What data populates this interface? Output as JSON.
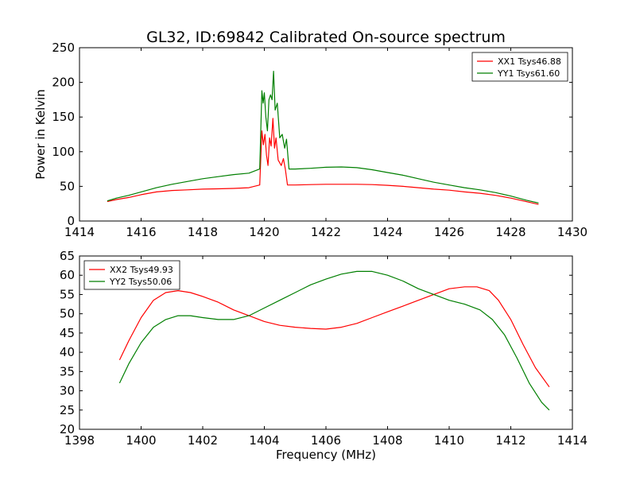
{
  "title": "GL32, ID:69842 Calibrated On-source spectrum",
  "colors": {
    "red": "#ff0000",
    "green": "#007f00"
  },
  "chart_data": [
    {
      "type": "line",
      "title": "GL32, ID:69842 Calibrated On-source spectrum",
      "xlabel": "",
      "ylabel": "Power in Kelvin",
      "xlim": [
        1414,
        1430
      ],
      "ylim": [
        0,
        250
      ],
      "xticks": [
        "1414",
        "1416",
        "1418",
        "1420",
        "1422",
        "1424",
        "1426",
        "1428",
        "1430"
      ],
      "yticks": [
        "0",
        "50",
        "100",
        "150",
        "200",
        "250"
      ],
      "legend_position": "top-right",
      "series": [
        {
          "name": "XX1 Tsys46.88",
          "color": "#ff0000",
          "x": [
            1414.9,
            1415.2,
            1415.6,
            1416.0,
            1416.5,
            1417.0,
            1417.5,
            1418.0,
            1418.5,
            1419.0,
            1419.5,
            1419.85,
            1419.92,
            1419.97,
            1420.02,
            1420.07,
            1420.12,
            1420.17,
            1420.22,
            1420.28,
            1420.33,
            1420.38,
            1420.45,
            1420.55,
            1420.62,
            1420.68,
            1420.75,
            1421.0,
            1421.5,
            1422.0,
            1422.5,
            1423.0,
            1423.5,
            1424.0,
            1424.5,
            1425.0,
            1425.5,
            1426.0,
            1426.5,
            1427.0,
            1427.5,
            1428.0,
            1428.5,
            1428.9
          ],
          "y": [
            28,
            31,
            34,
            38,
            42,
            44,
            45,
            46,
            46.5,
            47,
            48,
            52,
            130,
            110,
            125,
            95,
            80,
            120,
            108,
            148,
            105,
            120,
            88,
            80,
            90,
            75,
            52,
            52,
            52.5,
            53,
            53,
            53,
            52.5,
            51.5,
            50,
            48,
            46,
            44.5,
            42,
            40,
            37,
            33,
            28,
            24
          ]
        },
        {
          "name": "YY1 Tsys61.60",
          "color": "#007f00",
          "x": [
            1414.9,
            1415.2,
            1415.6,
            1416.0,
            1416.5,
            1417.0,
            1417.5,
            1418.0,
            1418.5,
            1419.0,
            1419.5,
            1419.85,
            1419.92,
            1419.96,
            1420.0,
            1420.05,
            1420.1,
            1420.15,
            1420.2,
            1420.25,
            1420.3,
            1420.35,
            1420.42,
            1420.5,
            1420.58,
            1420.66,
            1420.72,
            1420.8,
            1421.0,
            1421.5,
            1422.0,
            1422.5,
            1423.0,
            1423.5,
            1424.0,
            1424.5,
            1425.0,
            1425.5,
            1426.0,
            1426.5,
            1427.0,
            1427.5,
            1428.0,
            1428.5,
            1428.9
          ],
          "y": [
            29,
            33,
            37,
            42,
            48,
            53,
            57,
            61,
            64,
            67,
            69,
            75,
            188,
            170,
            185,
            150,
            130,
            175,
            182,
            175,
            216,
            160,
            170,
            120,
            125,
            105,
            118,
            75,
            75,
            76,
            77.5,
            78,
            77,
            74,
            70,
            66,
            61,
            56,
            52,
            48,
            45,
            41,
            36,
            30,
            26
          ]
        }
      ]
    },
    {
      "type": "line",
      "title": "",
      "xlabel": "Frequency (MHz)",
      "ylabel": "",
      "xlim": [
        1398,
        1414
      ],
      "ylim": [
        20,
        65
      ],
      "xticks": [
        "1398",
        "1400",
        "1402",
        "1404",
        "1406",
        "1408",
        "1410",
        "1412",
        "1414"
      ],
      "yticks": [
        "20",
        "25",
        "30",
        "35",
        "40",
        "45",
        "50",
        "55",
        "60",
        "65"
      ],
      "legend_position": "top-left",
      "series": [
        {
          "name": "XX2 Tsys49.93",
          "color": "#ff0000",
          "x": [
            1399.3,
            1399.6,
            1400.0,
            1400.4,
            1400.8,
            1401.2,
            1401.6,
            1402.0,
            1402.5,
            1403.0,
            1403.5,
            1404.0,
            1404.5,
            1405.0,
            1405.5,
            1406.0,
            1406.5,
            1407.0,
            1407.5,
            1408.0,
            1408.5,
            1409.0,
            1409.5,
            1410.0,
            1410.5,
            1410.9,
            1411.3,
            1411.6,
            1412.0,
            1412.4,
            1412.8,
            1413.25
          ],
          "y": [
            38,
            43,
            49,
            53.5,
            55.5,
            56,
            55.5,
            54.5,
            53,
            51,
            49.5,
            48,
            47,
            46.5,
            46.2,
            46,
            46.5,
            47.5,
            49,
            50.5,
            52,
            53.5,
            55,
            56.5,
            57,
            57,
            56,
            53.5,
            48.5,
            42,
            36,
            31
          ]
        },
        {
          "name": "YY2 Tsys50.06",
          "color": "#007f00",
          "x": [
            1399.3,
            1399.6,
            1400.0,
            1400.4,
            1400.8,
            1401.2,
            1401.6,
            1402.0,
            1402.5,
            1403.0,
            1403.5,
            1404.0,
            1404.5,
            1405.0,
            1405.5,
            1406.0,
            1406.5,
            1407.0,
            1407.5,
            1408.0,
            1408.5,
            1409.0,
            1409.5,
            1410.0,
            1410.5,
            1411.0,
            1411.4,
            1411.8,
            1412.2,
            1412.6,
            1413.0,
            1413.25
          ],
          "y": [
            32,
            37,
            42.5,
            46.5,
            48.5,
            49.5,
            49.5,
            49,
            48.5,
            48.5,
            49.5,
            51.5,
            53.5,
            55.5,
            57.5,
            59,
            60.3,
            61,
            61,
            60,
            58.5,
            56.5,
            55,
            53.5,
            52.5,
            51,
            48.5,
            44.5,
            38.5,
            32,
            27,
            25
          ]
        }
      ]
    }
  ]
}
